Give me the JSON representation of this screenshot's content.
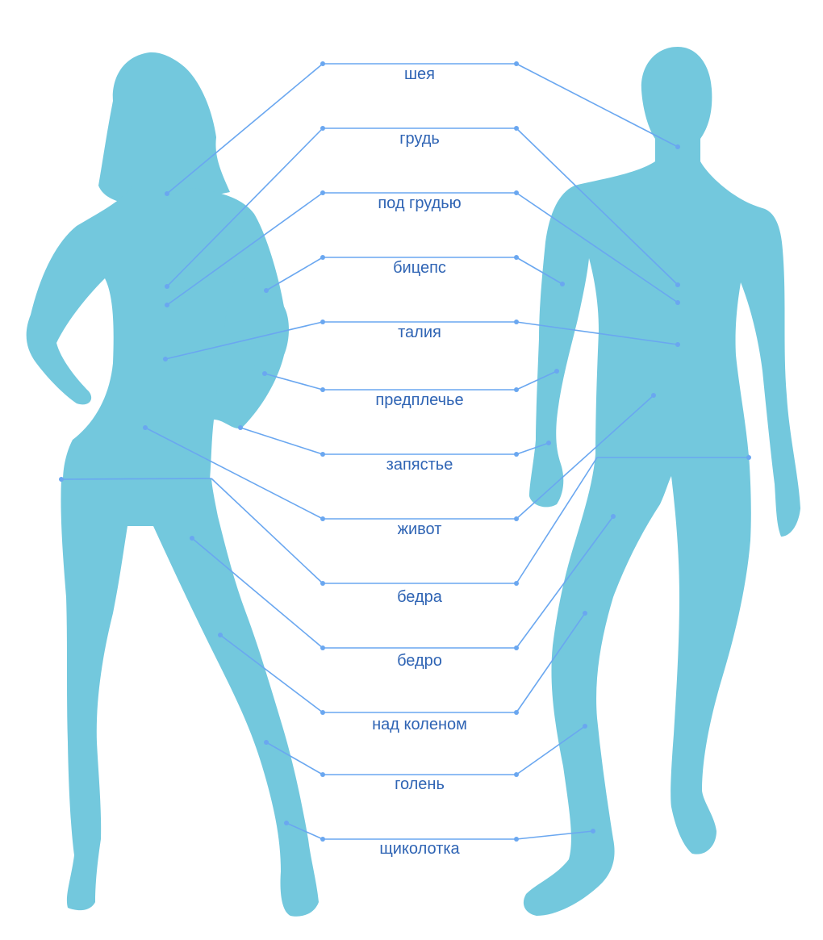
{
  "colors": {
    "silhouette": "#73c8dd",
    "line": "#6aa7f0",
    "label": "#2f64b4",
    "background": "#ffffff"
  },
  "labels": [
    "шея",
    "грудь",
    "под грудью",
    "бицепс",
    "талия",
    "предплечье",
    "запястье",
    "живот",
    "бедра",
    "бедро",
    "над коленом",
    "голень",
    "щиколотка"
  ]
}
